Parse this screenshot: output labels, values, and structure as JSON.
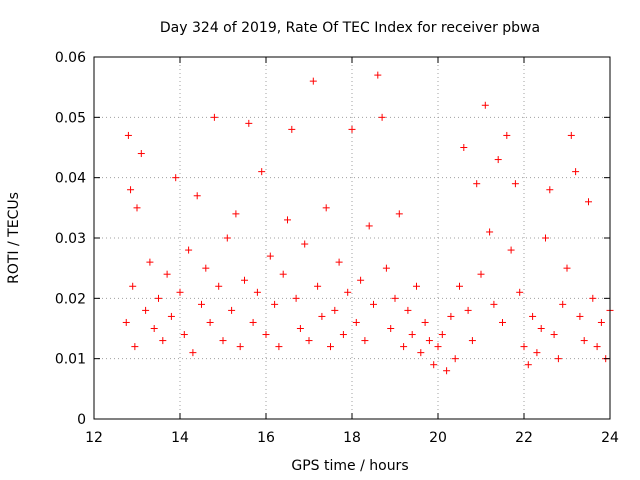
{
  "chart_data": {
    "type": "scatter",
    "title": "Day 324 of 2019, Rate Of TEC Index for receiver pbwa",
    "xlabel": "GPS time / hours",
    "ylabel": "ROTI / TECUs",
    "xlim": [
      12,
      24
    ],
    "ylim": [
      0,
      0.06
    ],
    "x_ticks": [
      "12",
      "14",
      "16",
      "18",
      "20",
      "22",
      "24"
    ],
    "y_ticks": [
      "0",
      "0.01",
      "0.02",
      "0.03",
      "0.04",
      "0.05",
      "0.06"
    ],
    "grid": true,
    "marker": "plus",
    "color": "#ff0000",
    "series": [
      {
        "name": "ROTI",
        "x": [
          12.75,
          12.8,
          12.85,
          12.9,
          12.95,
          13.0,
          13.1,
          13.2,
          13.3,
          13.4,
          13.5,
          13.6,
          13.7,
          13.8,
          13.9,
          14.0,
          14.1,
          14.2,
          14.3,
          14.4,
          14.5,
          14.6,
          14.7,
          14.8,
          14.9,
          15.0,
          15.1,
          15.2,
          15.3,
          15.4,
          15.5,
          15.6,
          15.7,
          15.8,
          15.9,
          16.0,
          16.1,
          16.2,
          16.3,
          16.4,
          16.5,
          16.6,
          16.7,
          16.8,
          16.9,
          17.0,
          17.1,
          17.2,
          17.3,
          17.4,
          17.5,
          17.6,
          17.7,
          17.8,
          17.9,
          18.0,
          18.1,
          18.2,
          18.3,
          18.4,
          18.5,
          18.6,
          18.7,
          18.8,
          18.9,
          19.0,
          19.1,
          19.2,
          19.3,
          19.4,
          19.5,
          19.6,
          19.7,
          19.8,
          19.9,
          20.0,
          20.1,
          20.2,
          20.3,
          20.4,
          20.5,
          20.6,
          20.7,
          20.8,
          20.9,
          21.0,
          21.1,
          21.2,
          21.3,
          21.4,
          21.5,
          21.6,
          21.7,
          21.8,
          21.9,
          22.0,
          22.1,
          22.2,
          22.3,
          22.4,
          22.5,
          22.6,
          22.7,
          22.8,
          22.9,
          23.0,
          23.1,
          23.2,
          23.3,
          23.4,
          23.5,
          23.6,
          23.7,
          23.8,
          23.9,
          24.0
        ],
        "y": [
          0.016,
          0.047,
          0.038,
          0.022,
          0.012,
          0.035,
          0.044,
          0.018,
          0.026,
          0.015,
          0.02,
          0.013,
          0.024,
          0.017,
          0.04,
          0.021,
          0.014,
          0.028,
          0.011,
          0.037,
          0.019,
          0.025,
          0.016,
          0.05,
          0.022,
          0.013,
          0.03,
          0.018,
          0.034,
          0.012,
          0.023,
          0.049,
          0.016,
          0.021,
          0.041,
          0.014,
          0.027,
          0.019,
          0.012,
          0.024,
          0.033,
          0.048,
          0.02,
          0.015,
          0.029,
          0.013,
          0.056,
          0.022,
          0.017,
          0.035,
          0.012,
          0.018,
          0.026,
          0.014,
          0.021,
          0.048,
          0.016,
          0.023,
          0.013,
          0.032,
          0.019,
          0.057,
          0.05,
          0.025,
          0.015,
          0.02,
          0.034,
          0.012,
          0.018,
          0.014,
          0.022,
          0.011,
          0.016,
          0.013,
          0.009,
          0.012,
          0.014,
          0.008,
          0.017,
          0.01,
          0.022,
          0.045,
          0.018,
          0.013,
          0.039,
          0.024,
          0.052,
          0.031,
          0.019,
          0.043,
          0.016,
          0.047,
          0.028,
          0.039,
          0.021,
          0.012,
          0.009,
          0.017,
          0.011,
          0.015,
          0.03,
          0.038,
          0.014,
          0.01,
          0.019,
          0.025,
          0.047,
          0.041,
          0.017,
          0.013,
          0.036,
          0.02,
          0.012,
          0.016,
          0.01,
          0.018
        ]
      }
    ]
  }
}
